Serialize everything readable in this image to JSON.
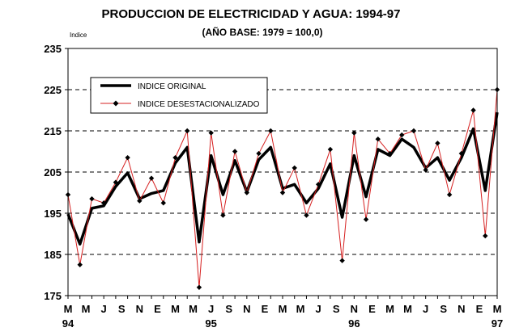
{
  "chart_data": {
    "type": "line",
    "title": "PRODUCCION DE ELECTRICIDAD Y AGUA: 1994-97",
    "subtitle": "(AÑO BASE: 1979 = 100,0)",
    "ylabel": "Indice",
    "xlabel": "",
    "ylim": [
      175,
      235
    ],
    "yticks": [
      175,
      185,
      195,
      205,
      215,
      225,
      235
    ],
    "grid": "horizontal-dashed",
    "legend_position": "top-left",
    "x_tick_labels": [
      "M",
      "M",
      "J",
      "S",
      "N",
      "E",
      "M",
      "M",
      "J",
      "S",
      "N",
      "E",
      "M",
      "M",
      "J",
      "S",
      "N",
      "E",
      "M",
      "M",
      "J",
      "S",
      "N",
      "E",
      "M"
    ],
    "x_year_labels": [
      {
        "period": 0,
        "label": "94"
      },
      {
        "period": 12,
        "label": "95"
      },
      {
        "period": 24,
        "label": "96"
      },
      {
        "period": 36,
        "label": "97"
      }
    ],
    "series": [
      {
        "name": "INDICE ORIGINAL",
        "color": "#000000",
        "values": [
          194.8,
          187.5,
          196.2,
          196.8,
          201.5,
          204.8,
          198.5,
          199.8,
          200.5,
          207.2,
          211.0,
          188.0,
          209.0,
          199.5,
          207.8,
          200.2,
          208.0,
          211.0,
          201.0,
          202.0,
          197.5,
          201.0,
          207.0,
          194.0,
          209.0,
          199.0,
          210.5,
          209.0,
          213.0,
          211.0,
          206.0,
          208.5,
          203.0,
          208.5,
          215.5,
          200.5,
          219.5
        ]
      },
      {
        "name": "INDICE DESESTACIONALIZADO",
        "color": "#d62020",
        "marker": "diamond",
        "marker_color": "#000000",
        "values": [
          199.5,
          182.5,
          198.5,
          197.5,
          202.5,
          208.5,
          198.0,
          203.5,
          197.5,
          208.5,
          215.0,
          177.0,
          214.5,
          194.5,
          210.0,
          200.0,
          209.5,
          215.0,
          200.0,
          206.0,
          194.5,
          202.0,
          210.5,
          183.5,
          214.5,
          193.5,
          213.0,
          209.5,
          214.0,
          215.0,
          205.5,
          212.0,
          199.5,
          209.5,
          220.0,
          189.5,
          225.0
        ]
      }
    ]
  }
}
